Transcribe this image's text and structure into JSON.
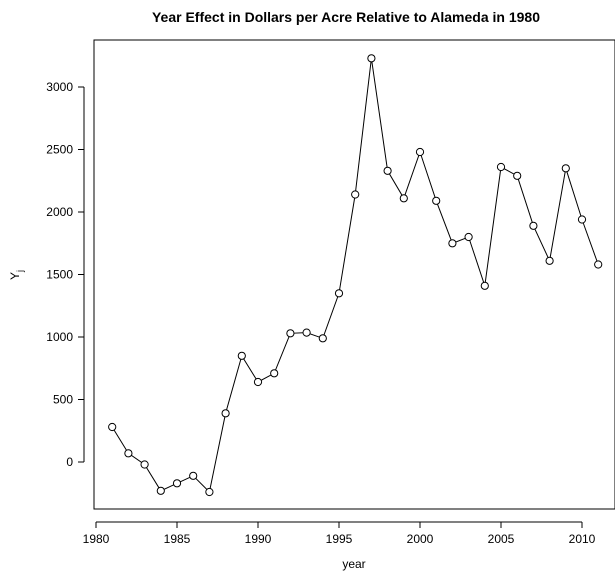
{
  "chart_data": {
    "type": "line",
    "title": "Year Effect in Dollars per Acre Relative to Alameda in 1980",
    "xlabel": "year",
    "ylabel": "Y",
    "ylabel_subscript": "j",
    "xlim": [
      1980,
      2011
    ],
    "ylim": [
      -400,
      3400
    ],
    "x_ticks": [
      1980,
      1985,
      1990,
      1995,
      2000,
      2005,
      2010
    ],
    "y_ticks": [
      0,
      500,
      1000,
      1500,
      2000,
      2500,
      3000
    ],
    "marker": "open-circle",
    "line_color": "#000000",
    "grid": false,
    "series": [
      {
        "x": [
          1981,
          1982,
          1983,
          1984,
          1985,
          1986,
          1987,
          1988,
          1989,
          1990,
          1991,
          1992,
          1993,
          1994,
          1995,
          1996,
          1997,
          1998,
          1999,
          2000,
          2001,
          2002,
          2003,
          2004,
          2005,
          2006,
          2007,
          2008,
          2009,
          2010,
          2011
        ],
        "y": [
          280,
          70,
          -20,
          -230,
          -170,
          -110,
          -240,
          390,
          850,
          640,
          710,
          1030,
          1035,
          990,
          1350,
          2140,
          3230,
          2330,
          2110,
          2480,
          2090,
          1750,
          1800,
          1410,
          2360,
          2290,
          1890,
          1610,
          2350,
          1940,
          1580
        ]
      }
    ]
  }
}
